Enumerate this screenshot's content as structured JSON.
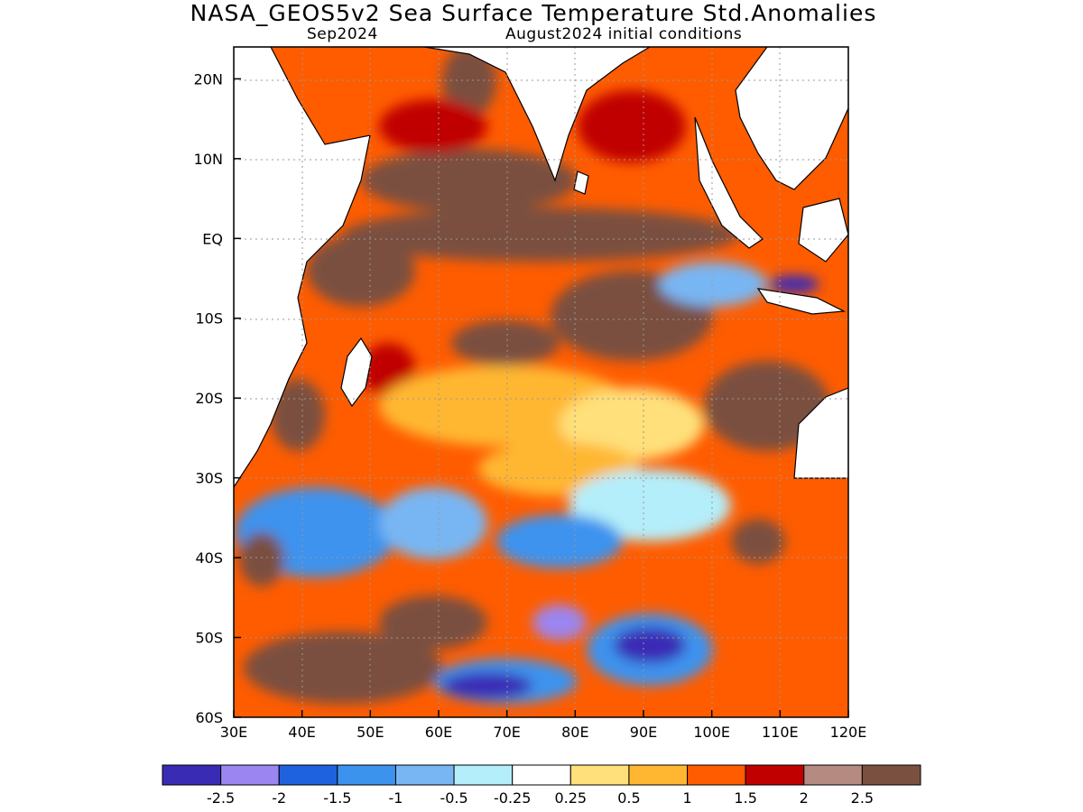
{
  "header": {
    "title": "NASA_GEOS5v2 Sea Surface Temperature Std.Anomalies",
    "subtitle_left": "Sep2024",
    "subtitle_right": "August2024 initial conditions"
  },
  "map": {
    "region": "Indian Ocean",
    "lon_range": [
      30,
      120
    ],
    "lat_range": [
      -60,
      24
    ],
    "lon_labels": [
      "30E",
      "40E",
      "50E",
      "60E",
      "70E",
      "80E",
      "90E",
      "100E",
      "110E",
      "120E"
    ],
    "lat_labels": [
      "20N",
      "10N",
      "EQ",
      "10S",
      "20S",
      "30S",
      "40S",
      "50S",
      "60S"
    ],
    "grid": true
  },
  "colorbar": {
    "colors": [
      "#3a2bb5",
      "#9b85f0",
      "#1e62e0",
      "#3c93ee",
      "#78b6f3",
      "#b4eefa",
      "#ffffff",
      "#ffe07a",
      "#ffb732",
      "#ff5c00",
      "#c00000",
      "#b58a80",
      "#7a5040"
    ],
    "labels": [
      "-2.5",
      "-2",
      "-1.5",
      "-1",
      "-0.5",
      "-0.25",
      "0.25",
      "0.5",
      "1",
      "1.5",
      "2",
      "2.5"
    ]
  }
}
